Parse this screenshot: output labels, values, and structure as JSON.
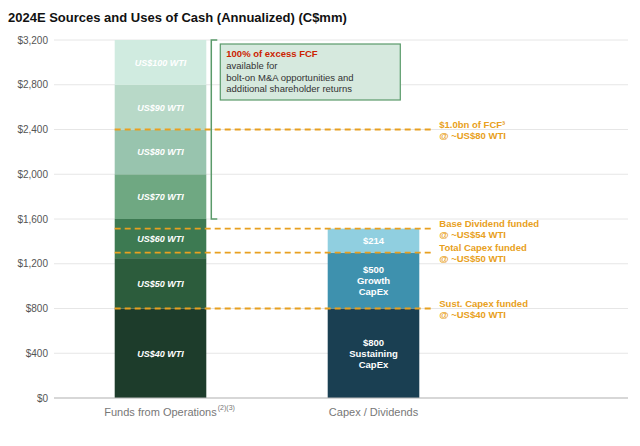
{
  "chart_data": {
    "type": "bar",
    "stacked": true,
    "title": "2024E Sources and Uses of Cash (Annualized) (C$mm)",
    "categories": [
      "Funds from Operations",
      "Capex / Dividends"
    ],
    "category_notes": [
      "(2)(3)",
      null
    ],
    "ylim": [
      0,
      3200
    ],
    "yticks": [
      {
        "value": 0,
        "label": "$0"
      },
      {
        "value": 400,
        "label": "$400"
      },
      {
        "value": 800,
        "label": "$800"
      },
      {
        "value": 1200,
        "label": "$1,200"
      },
      {
        "value": 1600,
        "label": "$1,600"
      },
      {
        "value": 2000,
        "label": "$2,000"
      },
      {
        "value": 2400,
        "label": "$2,400"
      },
      {
        "value": 2800,
        "label": "$2,800"
      },
      {
        "value": 3200,
        "label": "$3,200"
      }
    ],
    "grid": true,
    "series": [
      {
        "name": "US$40 WTI",
        "color": "#1d3c2b",
        "values": [
          800,
          null
        ]
      },
      {
        "name": "US$50 WTI",
        "color": "#2c5c3c",
        "values": [
          450,
          null
        ]
      },
      {
        "name": "US$60 WTI",
        "color": "#3d7a52",
        "values": [
          350,
          null
        ]
      },
      {
        "name": "US$70 WTI",
        "color": "#6fa882",
        "values": [
          400,
          null
        ]
      },
      {
        "name": "US$80 WTI",
        "color": "#98c4ae",
        "values": [
          400,
          null
        ]
      },
      {
        "name": "US$90 WTI",
        "color": "#b8d9c8",
        "values": [
          400,
          null
        ]
      },
      {
        "name": "US$100 WTI",
        "color": "#d0ebe0",
        "values": [
          400,
          null
        ]
      },
      {
        "name": "$800\nSustaining\nCapEx",
        "color": "#1a3f52",
        "values": [
          null,
          800
        ]
      },
      {
        "name": "$500\nGrowth\nCapEx",
        "color": "#3e91ae",
        "values": [
          null,
          500
        ]
      },
      {
        "name": "$214",
        "color": "#90cfe0",
        "values": [
          null,
          214
        ]
      }
    ],
    "reference_lines": [
      {
        "value": 800,
        "label": "Sust. Capex funded\n@ ~US$40 WTI",
        "color": "#e8a020"
      },
      {
        "value": 1300,
        "label": "Total Capex funded\n@ ~US$50 WTI",
        "color": "#e8a020"
      },
      {
        "value": 1514,
        "label": "Base Dividend funded\n@ ~US$54 WTI",
        "color": "#e8a020"
      },
      {
        "value": 2400,
        "label": "$1.0bn of FCF³\n@ ~US$80 WTI",
        "color": "#e8a020"
      }
    ],
    "annotation": {
      "bold_text": "100% of excess FCF",
      "bold_color": "#cc2200",
      "text": " available for\nbolt-on M&A opportunities and\nadditional shareholder returns",
      "color": "#333333",
      "span": [
        1600,
        3200
      ]
    }
  }
}
